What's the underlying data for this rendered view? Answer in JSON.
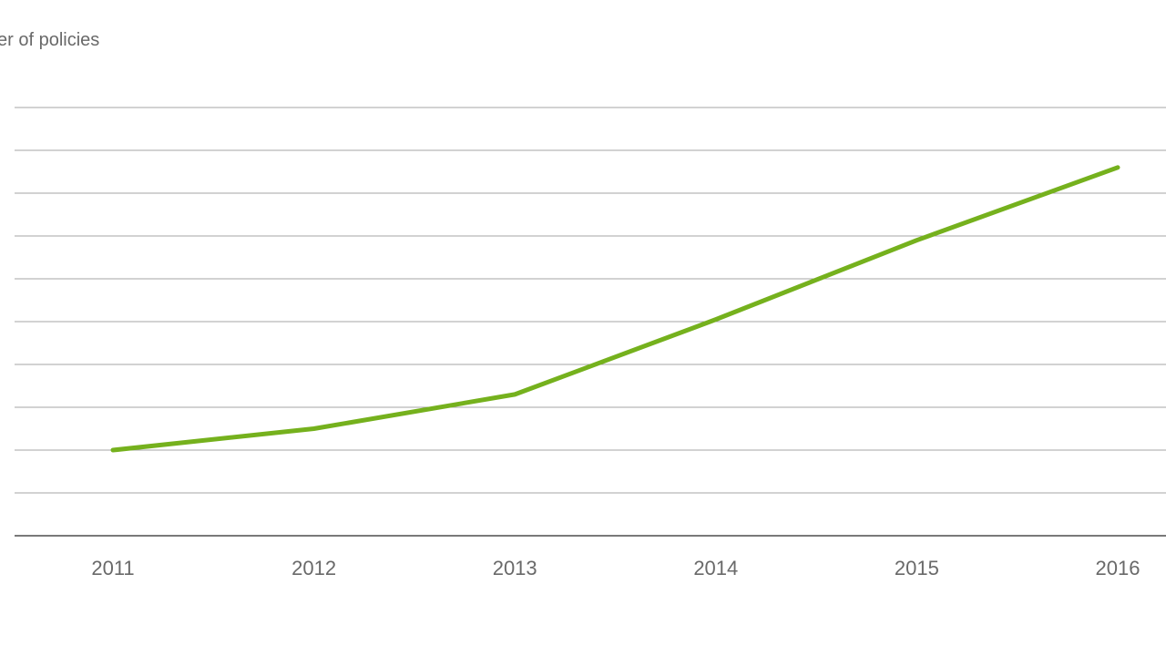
{
  "page": {
    "background": "#ffffff"
  },
  "chart": {
    "title": "er of policies",
    "title_color": "#696969",
    "line_color": "#75b11d",
    "gridline_color": "#a6a6a6",
    "axis_color": "#4d4d4d",
    "tick_label_color": "#696969"
  },
  "chart_data": {
    "type": "line",
    "title": "er of policies",
    "x": [
      2011,
      2012,
      2013,
      2014,
      2015,
      2016
    ],
    "x_tick_labels": [
      "2011",
      "2012",
      "2013",
      "2014",
      "2015",
      "2016"
    ],
    "series": [
      {
        "name": "policies",
        "color": "#75b11d",
        "values": [
          2.0,
          2.5,
          3.3,
          5.05,
          6.9,
          8.6
        ]
      }
    ],
    "xlabel": "",
    "ylabel": "",
    "ylim": [
      0,
      10.6
    ],
    "y_gridlines": [
      1,
      2,
      3,
      4,
      5,
      6,
      7,
      8,
      9,
      10
    ],
    "y_tick_labels_visible": false,
    "grid": "horizontal",
    "legend_position": "none"
  }
}
